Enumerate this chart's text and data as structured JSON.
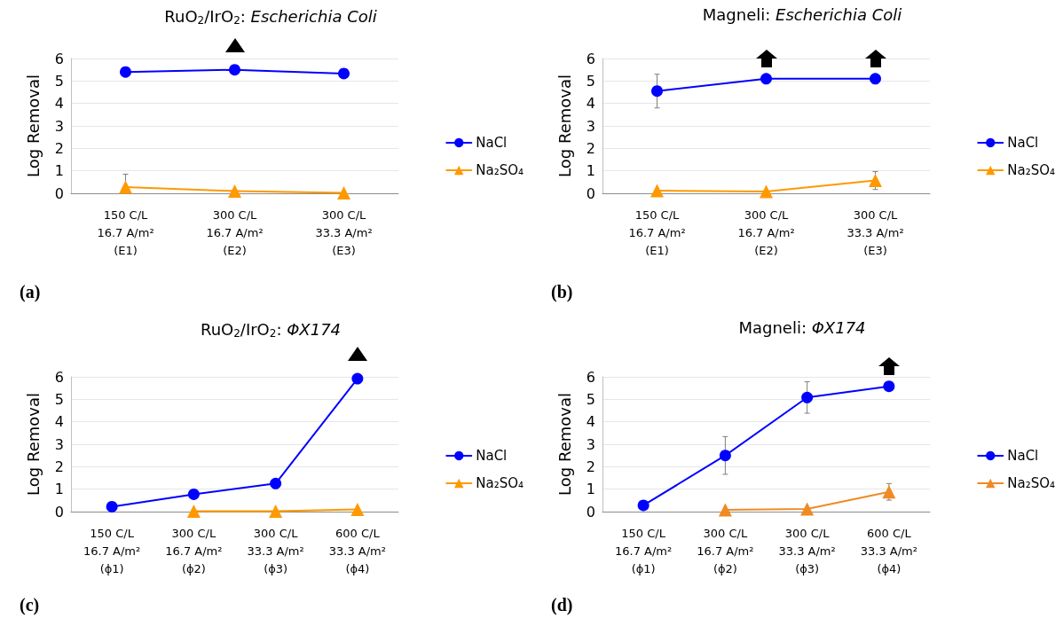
{
  "chart_data": [
    {
      "type": "line",
      "title": "RuO$_{2}$/IrO$_{2}$: Escherichia Coli",
      "ylabel": "Log Removal",
      "categories": [
        "150 C/L\n16.7 A/m²\n(E1)",
        "300 C/L\n16.7 A/m²\n(E2)",
        "300 C/L\n33.3 A/m²\n(E3)"
      ],
      "ylim": [
        0,
        6
      ],
      "yticks": [
        0,
        1,
        2,
        3,
        4,
        5,
        6
      ],
      "grid": "y",
      "legend": "right",
      "annotations": [
        "(a)"
      ],
      "series": [
        {
          "name": "NaCl",
          "color": "#0000ff",
          "marker": "circle",
          "values": [
            5.4,
            5.5,
            5.33
          ]
        },
        {
          "name": "Na₂SO₄",
          "color": "#ff9900",
          "marker": "triangle",
          "values": [
            0.28,
            0.1,
            0.02
          ],
          "errors": [
            [
              0.28,
              0.85
            ],
            null,
            null
          ]
        }
      ]
    },
    {
      "type": "line",
      "title": "Magneli: Escherichia Coli",
      "ylabel": "Log Removal",
      "categories": [
        "150 C/L\n16.7 A/m²\n(E1)",
        "300 C/L\n16.7 A/m²\n(E2)",
        "300 C/L\n33.3 A/m²\n(E3)"
      ],
      "ylim": [
        0,
        6
      ],
      "yticks": [
        0,
        1,
        2,
        3,
        4,
        5,
        6
      ],
      "grid": "y",
      "legend": "right",
      "annotations": [
        "(b)"
      ],
      "series": [
        {
          "name": "NaCl",
          "color": "#0000ff",
          "marker": "circle",
          "values": [
            4.55,
            5.1,
            5.1
          ],
          "errors": [
            0.75,
            null,
            null
          ]
        },
        {
          "name": "Na₂SO₄",
          "color": "#ff9900",
          "marker": "triangle",
          "values": [
            0.12,
            0.08,
            0.57
          ],
          "errors": [
            null,
            null,
            0.4
          ]
        }
      ]
    },
    {
      "type": "line",
      "title": "RuO$_{2}$/IrO$_{2}$: ΦX174",
      "ylabel": "Log Removal",
      "categories": [
        "150 C/L\n16.7 A/m²\n(ϕ1)",
        "300 C/L\n16.7 A/m²\n(ϕ2)",
        "300 C/L\n33.3 A/m²\n(ϕ3)",
        "600 C/L\n33.3 A/m²\n(ϕ4)"
      ],
      "ylim": [
        0,
        6
      ],
      "yticks": [
        0,
        1,
        2,
        3,
        4,
        5,
        6
      ],
      "grid": "y",
      "legend": "right",
      "annotations": [
        "(c)"
      ],
      "series": [
        {
          "name": "NaCl",
          "color": "#0000ff",
          "marker": "circle",
          "values": [
            0.22,
            0.77,
            1.25,
            5.92
          ]
        },
        {
          "name": "Na₂SO₄",
          "color": "#ff9900",
          "marker": "triangle",
          "values": [
            null,
            0.02,
            0.02,
            0.1
          ]
        }
      ]
    },
    {
      "type": "line",
      "title": "Magneli: ΦX174",
      "ylabel": "Log Removal",
      "categories": [
        "150 C/L\n16.7 A/m²\n(ϕ1)",
        "300 C/L\n16.7 A/m²\n(ϕ2)",
        "300 C/L\n33.3 A/m²\n(ϕ3)",
        "600 C/L\n33.3 A/m²\n(ϕ4)"
      ],
      "ylim": [
        0,
        6
      ],
      "yticks": [
        0,
        1,
        2,
        3,
        4,
        5,
        6
      ],
      "grid": "y",
      "legend": "right",
      "annotations": [
        "(d)"
      ],
      "series": [
        {
          "name": "NaCl",
          "color": "#0000ff",
          "marker": "circle",
          "values": [
            0.28,
            2.5,
            5.08,
            5.58
          ],
          "errors": [
            null,
            0.84,
            0.7,
            null
          ]
        },
        {
          "name": "Na₂SO₄",
          "color": "#f08a24",
          "marker": "triangle",
          "values": [
            null,
            0.08,
            0.12,
            0.88
          ],
          "errors": [
            null,
            null,
            null,
            0.37
          ]
        }
      ]
    }
  ]
}
